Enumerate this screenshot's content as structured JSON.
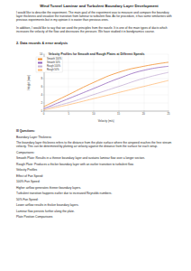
{
  "header": {
    "title": "Wind Tunnel Laminar and Turbulent Boundary Layer Development"
  },
  "intro": [
    "I would like to describe the experiment. The main goal of the experiment was to measure and compare the boundary layer thickness and visualize the transition from laminar to turbulent flow. As for procedure, it has some similarities with previous experiments but in my opinion it is easier than previous ones.",
    "In addition, I would like to say that we used the principles from the nozzle. It is one of the main types of ducts which increases the velocity of the flow and decreases the pressure. We have studied it in bondynamics course."
  ],
  "section": "2. Data records & error analysis",
  "chart_data": {
    "type": "line",
    "title": "Velocity Profiles for Smooth and Rough Plates at Different Speeds",
    "x_label": "Velocity (m/s)",
    "y_label": "Height (mm)",
    "x": [
      0,
      5,
      10,
      15,
      20,
      25
    ],
    "series": [
      {
        "name": "Smooth 100%",
        "color": "#f28e2b",
        "values": [
          1,
          4,
          7,
          9.5,
          11,
          12
        ]
      },
      {
        "name": "Smooth 50%",
        "color": "#9467bd",
        "values": [
          0.5,
          3,
          5.5,
          8,
          10,
          11
        ]
      },
      {
        "name": "Rough 100%",
        "color": "#c5b0d5",
        "values": [
          0.5,
          2,
          4,
          6,
          8,
          9.5
        ]
      },
      {
        "name": "Rough 50%",
        "color": "#ffbb78",
        "values": [
          0.2,
          1.5,
          3,
          4.5,
          6,
          7.5
        ]
      }
    ],
    "xlim": [
      0,
      25
    ],
    "xticks": [
      0,
      5,
      10,
      15,
      20,
      25
    ],
    "ylim": [
      0,
      14
    ],
    "yticks": [
      0,
      2,
      4,
      6,
      8,
      10,
      12,
      14
    ],
    "grid": true,
    "legend": "upper left"
  },
  "questions": [
    "III Questions:",
    "Boundary Layer Thickness",
    "The boundary layer thickness refers to the distance from the plate surface where the airspeed reaches the free stream velocity. This can be determined by plotting air velocity against the distance from the surface for each setup.",
    "Comparisons:",
    "Smooth Plate: Results in a thinner boundary layer and sustains laminar flow over a longer section.",
    "Rough Plate: Produces a thicker boundary layer with an earlier transition to turbulent flow.",
    "Velocity Profiles",
    "Effect of Fan Speed:",
    "100% Fan Speed:",
    "Higher airflow generates thinner boundary layers.",
    "Turbulent transition happens earlier due to increased Reynolds numbers.",
    "50% Fan Speed:",
    "Lower airflow results in thicker boundary layers.",
    "Laminar flow persists further along the plate.",
    "Plate Position Comparisons"
  ]
}
